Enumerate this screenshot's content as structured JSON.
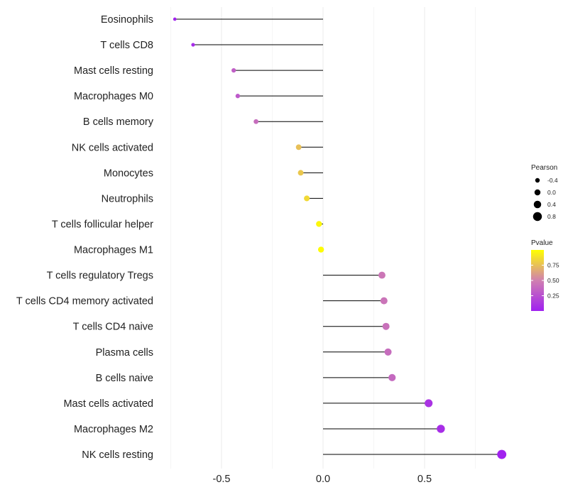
{
  "chart_data": {
    "type": "lollipop",
    "title": "",
    "xlabel": "",
    "ylabel": "",
    "xlim": [
      -0.75,
      0.87
    ],
    "x_ticks": [
      -0.5,
      0.0,
      0.5
    ],
    "x_tick_labels": [
      "-0.5",
      "0.0",
      "0.5"
    ],
    "grid": "vertical",
    "categories": [
      "Eosinophils",
      "T cells CD8",
      "Mast cells resting",
      "Macrophages M0",
      "B cells memory",
      "NK cells activated",
      "Monocytes",
      "Neutrophils",
      "T cells follicular helper",
      "Macrophages M1",
      "T cells regulatory  Tregs ",
      "T cells CD4 memory activated",
      "T cells CD4 naive",
      "Plasma cells",
      "B cells naive",
      "Mast cells activated",
      "Macrophages M2",
      "NK cells resting"
    ],
    "pearson": [
      -0.73,
      -0.64,
      -0.44,
      -0.42,
      -0.33,
      -0.12,
      -0.11,
      -0.08,
      -0.02,
      -0.01,
      0.29,
      0.3,
      0.31,
      0.32,
      0.34,
      0.52,
      0.58,
      0.88
    ],
    "pvalue": [
      0.02,
      0.06,
      0.33,
      0.3,
      0.4,
      0.75,
      0.78,
      0.85,
      0.97,
      0.99,
      0.45,
      0.44,
      0.42,
      0.4,
      0.38,
      0.1,
      0.07,
      0.01
    ],
    "legend": {
      "size_title": "Pearson",
      "size_entries": [
        {
          "label": "-0.4",
          "value": -0.4
        },
        {
          "label": "0.0",
          "value": 0.0
        },
        {
          "label": "0.4",
          "value": 0.4
        },
        {
          "label": "0.8",
          "value": 0.8
        }
      ],
      "color_title": "Pvalue",
      "color_ticks": [
        {
          "label": "0.75",
          "value": 0.75
        },
        {
          "label": "0.50",
          "value": 0.5
        },
        {
          "label": "0.25",
          "value": 0.25
        }
      ],
      "color_range": [
        0.0,
        1.0
      ],
      "color_low": "#a020f0",
      "color_high": "#ffff00",
      "placement": "right"
    },
    "colors": {
      "segment": "#000000",
      "grid": "#ebebeb",
      "background": "#ffffff"
    }
  }
}
